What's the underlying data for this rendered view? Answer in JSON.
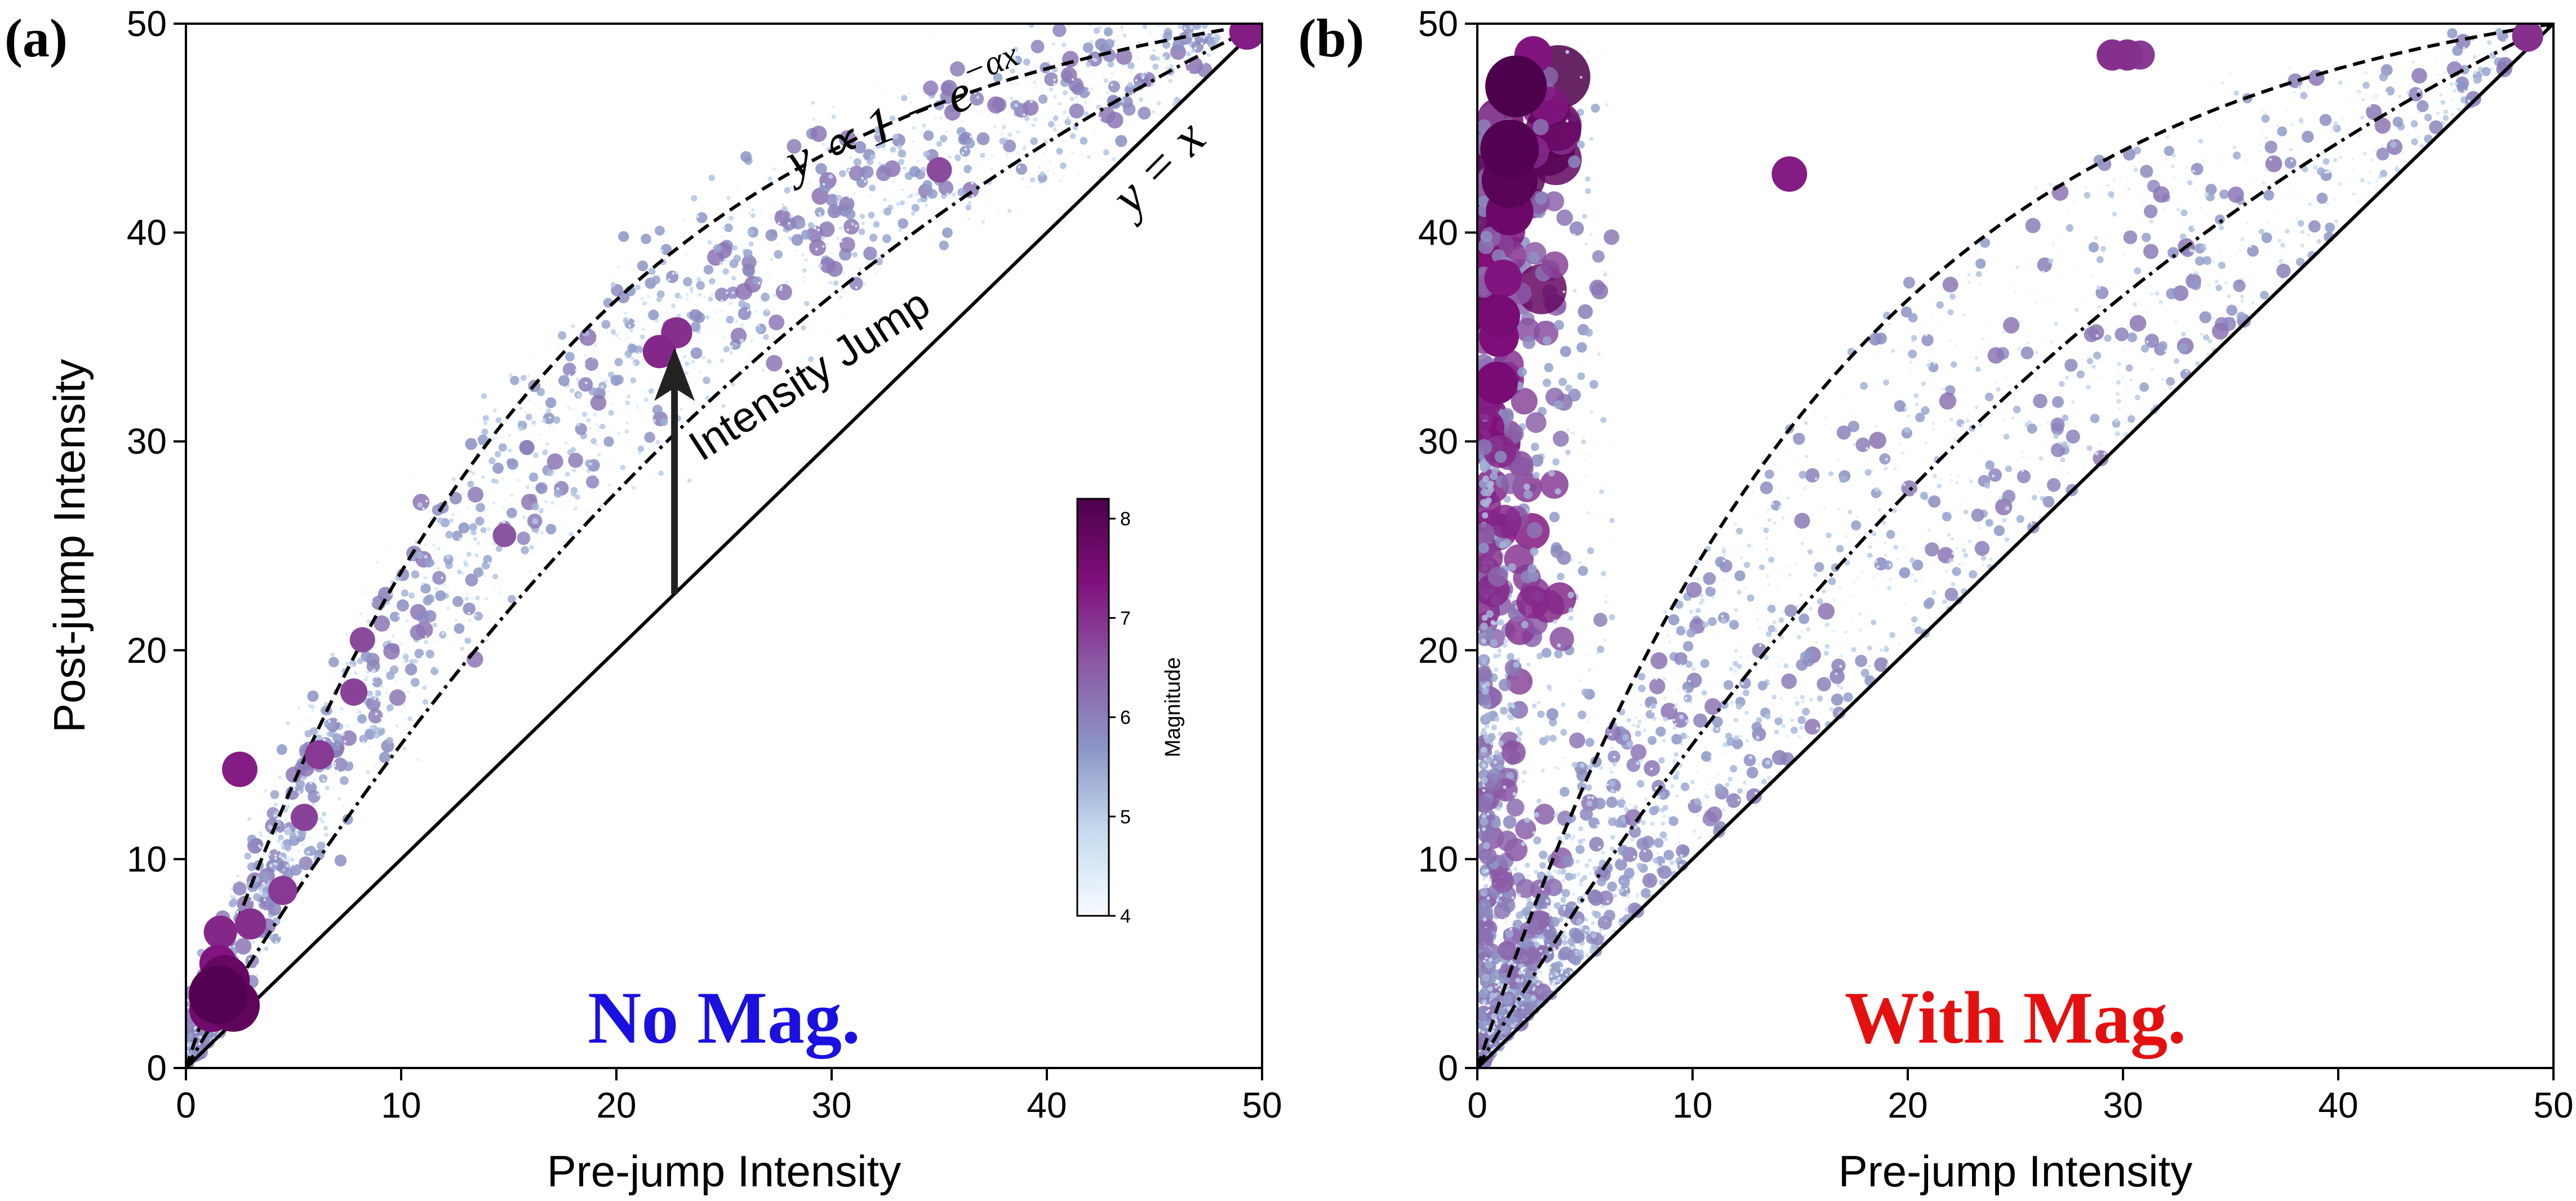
{
  "chart_data": [
    {
      "panel_label": "(a)",
      "type": "scatter",
      "xlabel": "Pre-jump Intensity",
      "ylabel": "Post-jump Intensity",
      "xlim": [
        0,
        50
      ],
      "ylim": [
        0,
        50
      ],
      "xticks": [
        0,
        10,
        20,
        30,
        40,
        50
      ],
      "yticks": [
        0,
        10,
        20,
        30,
        40,
        50
      ],
      "inset_text": "No Mag.",
      "inset_color": "#1a10e0",
      "curves": [
        {
          "label": "y = x",
          "style": "solid"
        },
        {
          "label": "y ∝ 1 − e^(−αx)",
          "style": "dashed",
          "alpha": 0.06
        },
        {
          "style": "dash-dot",
          "alpha": 0.025
        }
      ],
      "annotations": {
        "arrow_label": "Intensity Jump",
        "arrow_from": [
          22.7,
          22.7
        ],
        "arrow_to": [
          22.7,
          34.5
        ],
        "dashed_curve_label": "y ∝ 1 − e",
        "dashed_curve_exponent": "−αx",
        "identity_label": "y = x"
      },
      "highlight_points": [
        {
          "x": 1.5,
          "y": 3.5,
          "mag": 8.1
        },
        {
          "x": 1.8,
          "y": 4.2,
          "mag": 7.8
        },
        {
          "x": 1.2,
          "y": 2.8,
          "mag": 7.6
        },
        {
          "x": 2.2,
          "y": 3.0,
          "mag": 7.9
        },
        {
          "x": 1.5,
          "y": 5.0,
          "mag": 7.3
        },
        {
          "x": 1.6,
          "y": 6.5,
          "mag": 7.1
        },
        {
          "x": 2.5,
          "y": 14.3,
          "mag": 7.2
        },
        {
          "x": 3.0,
          "y": 6.9,
          "mag": 7.0
        },
        {
          "x": 4.5,
          "y": 8.5,
          "mag": 6.9
        },
        {
          "x": 5.5,
          "y": 12.0,
          "mag": 6.8
        },
        {
          "x": 6.2,
          "y": 15.0,
          "mag": 6.9
        },
        {
          "x": 7.8,
          "y": 18.0,
          "mag": 6.8
        },
        {
          "x": 8.2,
          "y": 20.5,
          "mag": 6.7
        },
        {
          "x": 14.8,
          "y": 25.5,
          "mag": 6.6
        },
        {
          "x": 22.0,
          "y": 34.3,
          "mag": 7.1
        },
        {
          "x": 22.8,
          "y": 35.2,
          "mag": 7.0
        },
        {
          "x": 35.0,
          "y": 43.0,
          "mag": 6.7
        },
        {
          "x": 49.3,
          "y": 49.6,
          "mag": 7.2
        }
      ]
    },
    {
      "panel_label": "(b)",
      "type": "scatter",
      "xlabel": "Pre-jump Intensity",
      "ylabel": "",
      "xlim": [
        0,
        50
      ],
      "ylim": [
        0,
        50
      ],
      "xticks": [
        0,
        10,
        20,
        30,
        40,
        50
      ],
      "yticks": [
        0,
        10,
        20,
        30,
        40,
        50
      ],
      "inset_text": "With Mag.",
      "inset_color": "#e41010",
      "curves": [
        {
          "label": "y = x",
          "style": "solid"
        },
        {
          "style": "dashed",
          "alpha": 0.06
        },
        {
          "style": "dash-dot",
          "alpha": 0.025
        }
      ],
      "highlight_points": [
        {
          "x": 1.8,
          "y": 47.0,
          "mag": 8.2
        },
        {
          "x": 1.5,
          "y": 44.0,
          "mag": 8.1
        },
        {
          "x": 1.5,
          "y": 42.5,
          "mag": 8.0
        },
        {
          "x": 1.5,
          "y": 41.0,
          "mag": 7.7
        },
        {
          "x": 2.6,
          "y": 48.5,
          "mag": 7.3
        },
        {
          "x": 1.2,
          "y": 37.8,
          "mag": 7.3
        },
        {
          "x": 1.0,
          "y": 36.0,
          "mag": 7.5
        },
        {
          "x": 1.0,
          "y": 35.0,
          "mag": 7.4
        },
        {
          "x": 0.9,
          "y": 32.8,
          "mag": 7.5
        },
        {
          "x": 14.5,
          "y": 42.8,
          "mag": 7.2
        },
        {
          "x": 29.5,
          "y": 48.5,
          "mag": 7.0
        },
        {
          "x": 30.2,
          "y": 48.5,
          "mag": 7.0
        },
        {
          "x": 30.8,
          "y": 48.5,
          "mag": 6.9
        },
        {
          "x": 48.8,
          "y": 49.4,
          "mag": 7.0
        }
      ]
    }
  ],
  "colorbar": {
    "title": "Magnitude",
    "range": [
      4,
      8.2
    ],
    "ticks": [
      4,
      5,
      6,
      7,
      8
    ],
    "colors": [
      "#f7fbff",
      "#c6dbef",
      "#8c96c6",
      "#8c5ba6",
      "#810f7c",
      "#4d004b"
    ]
  }
}
